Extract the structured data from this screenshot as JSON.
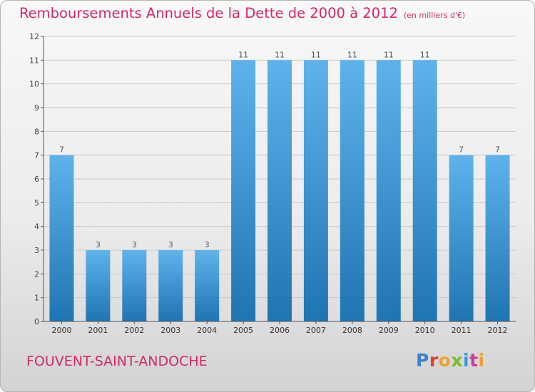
{
  "title": "Remboursements Annuels de la Dette de 2000 à 2012",
  "unit": "(en milliers d'€)",
  "commune": "FOUVENT-SAINT-ANDOCHE",
  "brand": {
    "letters": [
      {
        "ch": "P",
        "color": "#3f7fce"
      },
      {
        "ch": "r",
        "color": "#e43d2f"
      },
      {
        "ch": "o",
        "color": "#f0a02a"
      },
      {
        "ch": "x",
        "color": "#7dbb2e"
      },
      {
        "ch": "i",
        "color": "#2f9ed8"
      },
      {
        "ch": "t",
        "color": "#c83ea0"
      },
      {
        "ch": "i",
        "color": "#f0a02a"
      }
    ]
  },
  "colors": {
    "title": "#d2286b",
    "bar_light": "#5fb3ec",
    "bar_dark": "#1f74b2",
    "axis": "#555555",
    "grid": "#c8c8c8"
  },
  "chart_data": {
    "type": "bar",
    "categories": [
      "2000",
      "2001",
      "2002",
      "2003",
      "2004",
      "2005",
      "2006",
      "2007",
      "2008",
      "2009",
      "2010",
      "2011",
      "2012"
    ],
    "values": [
      7,
      3,
      3,
      3,
      3,
      11,
      11,
      11,
      11,
      11,
      11,
      7,
      7
    ],
    "ylim": [
      0,
      12
    ],
    "yticks": [
      0,
      1,
      2,
      3,
      4,
      5,
      6,
      7,
      8,
      9,
      10,
      11,
      12
    ],
    "grid": true,
    "data_labels": true
  }
}
